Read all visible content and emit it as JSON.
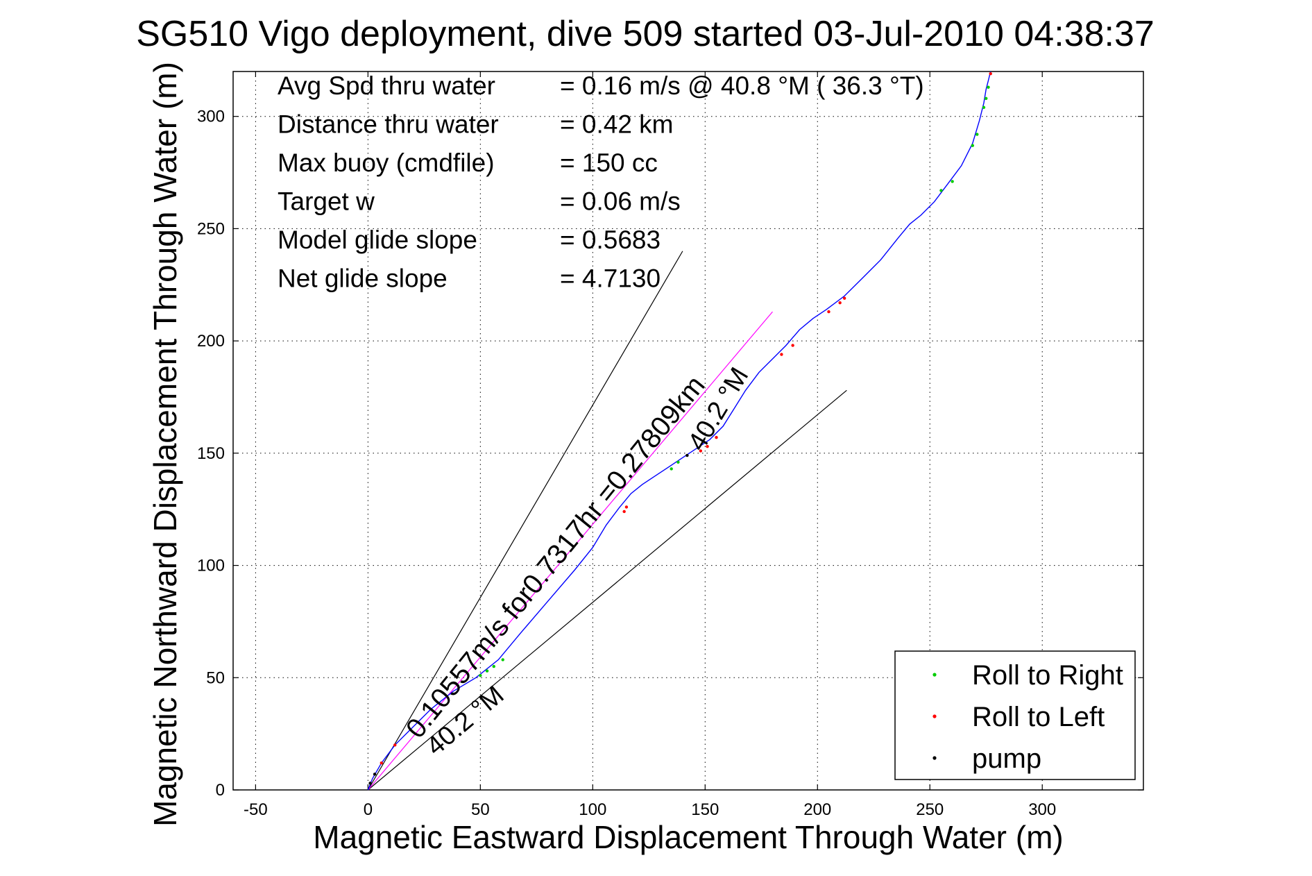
{
  "chart_data": {
    "type": "line",
    "title": "SG510 Vigo deployment, dive 509 started 03-Jul-2010 04:38:37",
    "xlabel": "Magnetic Eastward Displacement Through Water (m)",
    "ylabel": "Magnetic Northward Displacement Through Water (m)",
    "xlim": [
      -60,
      345
    ],
    "ylim": [
      0,
      320
    ],
    "xticks": [
      -50,
      0,
      50,
      100,
      150,
      200,
      250,
      300
    ],
    "yticks": [
      0,
      50,
      100,
      150,
      200,
      250,
      300
    ],
    "grid": true,
    "legend_location": "bottom-right",
    "stats": [
      {
        "label": "Avg Spd thru water",
        "value": "=  0.16 m/s @  40.8 °M ( 36.3 °T)"
      },
      {
        "label": "Distance thru water",
        "value": "=  0.42 km"
      },
      {
        "label": "Max buoy (cmdfile)",
        "value": "= 150 cc"
      },
      {
        "label": "Target w",
        "value": "= 0.06 m/s"
      },
      {
        "label": "Model glide slope",
        "value": "= 0.5683"
      },
      {
        "label": "Net glide slope",
        "value": "= 4.7130"
      }
    ],
    "heading_labels": {
      "upper": "40.2 °M",
      "lower": "40.2 °M"
    },
    "current_label": "0.10557m/s for0.7317hr =0.27809km",
    "legend": [
      {
        "label": "Roll to Right",
        "color": "#00cc00"
      },
      {
        "label": "Roll to Left",
        "color": "#ff0000"
      },
      {
        "label": "pump",
        "color": "#000000"
      }
    ],
    "track": {
      "color": "#0000ff",
      "x": [
        0,
        2,
        6,
        12,
        20,
        28,
        38,
        48,
        58,
        68,
        80,
        92,
        100,
        106,
        112,
        117,
        122,
        128,
        134,
        140,
        146,
        152,
        158,
        163,
        168,
        174,
        180,
        186,
        192,
        198,
        204,
        212,
        220,
        228,
        236,
        241,
        246,
        252,
        258,
        264,
        269,
        272,
        274,
        275,
        276,
        277
      ],
      "y": [
        0,
        5,
        12,
        20,
        28,
        36,
        44,
        50,
        58,
        70,
        84,
        98,
        108,
        118,
        126,
        132,
        136,
        140,
        144,
        148,
        152,
        156,
        162,
        170,
        178,
        186,
        192,
        198,
        205,
        210,
        214,
        220,
        228,
        236,
        246,
        252,
        256,
        262,
        270,
        278,
        288,
        298,
        306,
        312,
        316,
        320
      ],
      "roll_right": [
        [
          50,
          51
        ],
        [
          53,
          53
        ],
        [
          56,
          55
        ],
        [
          60,
          58
        ],
        [
          135,
          143
        ],
        [
          138,
          146
        ],
        [
          255,
          267
        ],
        [
          260,
          271
        ],
        [
          269,
          287
        ],
        [
          271,
          292
        ],
        [
          274,
          304
        ],
        [
          275,
          308
        ],
        [
          276,
          313
        ]
      ],
      "roll_left": [
        [
          6,
          12
        ],
        [
          12,
          20
        ],
        [
          114,
          124
        ],
        [
          115,
          126
        ],
        [
          148,
          151
        ],
        [
          151,
          153
        ],
        [
          155,
          157
        ],
        [
          184,
          194
        ],
        [
          189,
          198
        ],
        [
          205,
          213
        ],
        [
          210,
          217
        ],
        [
          212,
          219
        ],
        [
          277,
          319
        ]
      ],
      "pump": [
        [
          1,
          3
        ],
        [
          3,
          7
        ],
        [
          142,
          149
        ]
      ]
    },
    "current_line": {
      "color": "#ff00ff",
      "x": [
        0,
        180
      ],
      "y": [
        0,
        213
      ]
    },
    "heading_lines": [
      {
        "color": "#000000",
        "x": [
          0,
          140
        ],
        "y": [
          0,
          240
        ]
      },
      {
        "color": "#000000",
        "x": [
          0,
          213
        ],
        "y": [
          0,
          178
        ]
      }
    ]
  }
}
